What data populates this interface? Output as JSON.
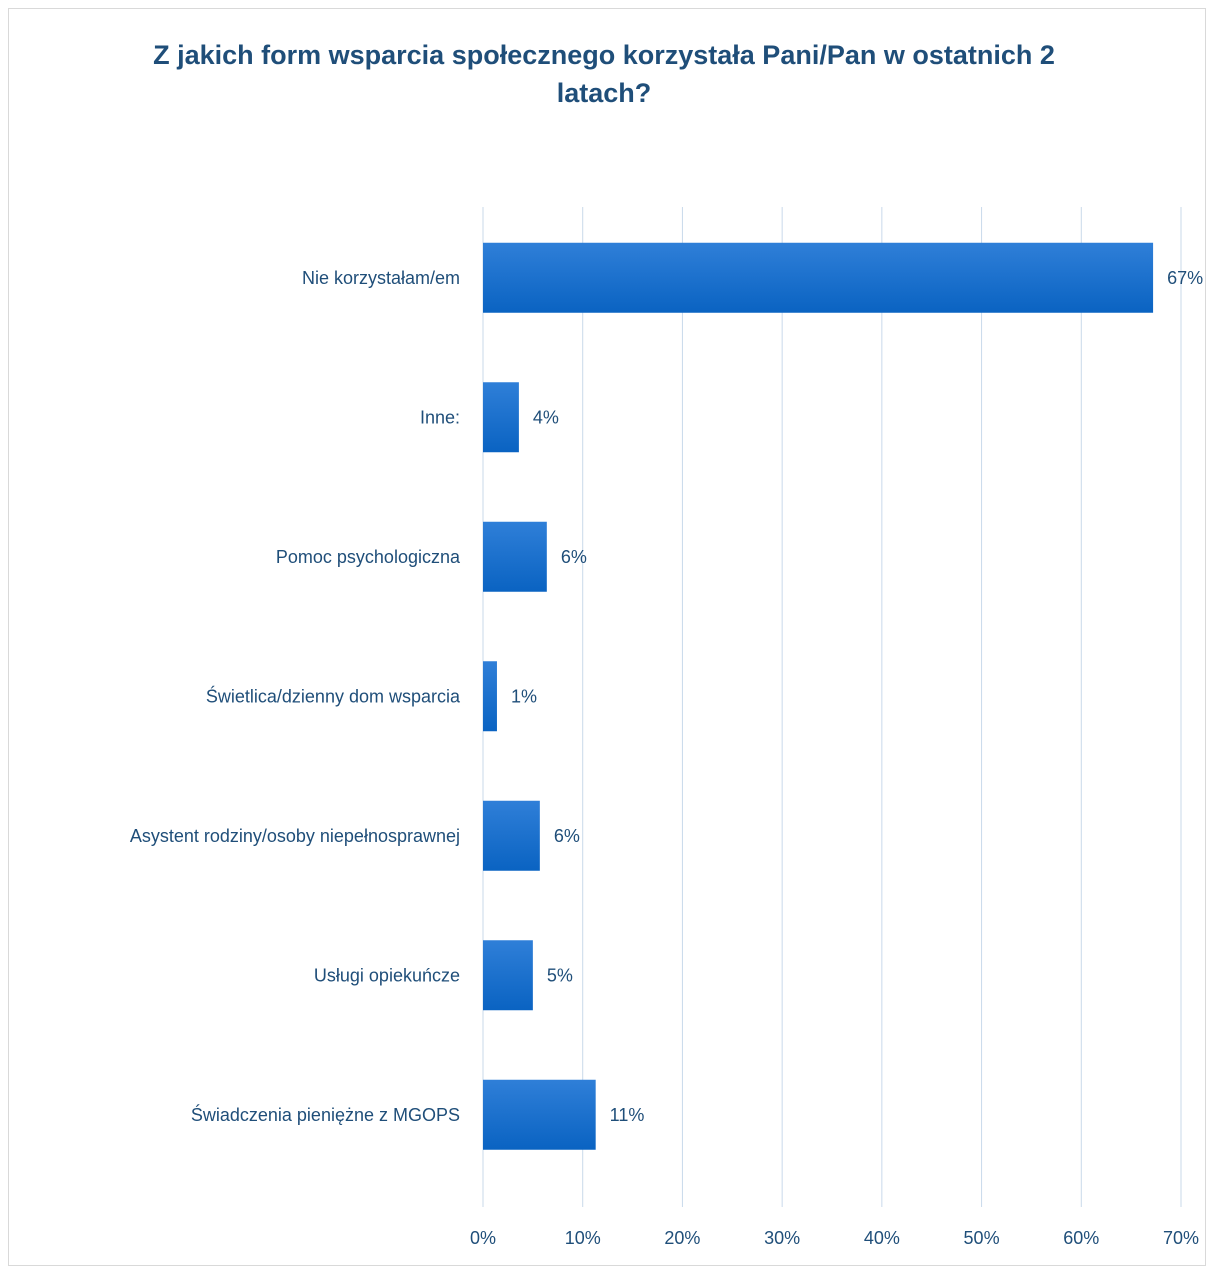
{
  "chart_data": {
    "type": "bar",
    "orientation": "horizontal",
    "title_lines": [
      "Z jakich form wsparcia społecznego korzystała Pani/Pan w ostatnich 2",
      "latach?"
    ],
    "categories": [
      "Nie korzystałam/em",
      "Inne:",
      "Pomoc psychologiczna",
      "Świetlica/dzienny dom wsparcia",
      "Asystent rodziny/osoby niepełnosprawnej",
      "Usługi opiekuńcze",
      "Świadczenia pieniężne z MGOPS"
    ],
    "values": [
      67.2,
      3.6,
      6.4,
      1.4,
      5.7,
      5.0,
      11.3
    ],
    "data_labels": [
      "67%",
      "4%",
      "6%",
      "1%",
      "6%",
      "5%",
      "11%"
    ],
    "xlim": [
      0,
      70
    ],
    "x_ticks": [
      0,
      10,
      20,
      30,
      40,
      50,
      60,
      70
    ],
    "x_tick_labels": [
      "0%",
      "10%",
      "20%",
      "30%",
      "40%",
      "50%",
      "60%",
      "70%"
    ],
    "grid": "vertical",
    "legend": "none",
    "colors": {
      "bar_top": "#2f7fd8",
      "bar_bottom": "#0a63c2",
      "text": "#1f4e79",
      "gridline": "#c9d9ea"
    }
  }
}
